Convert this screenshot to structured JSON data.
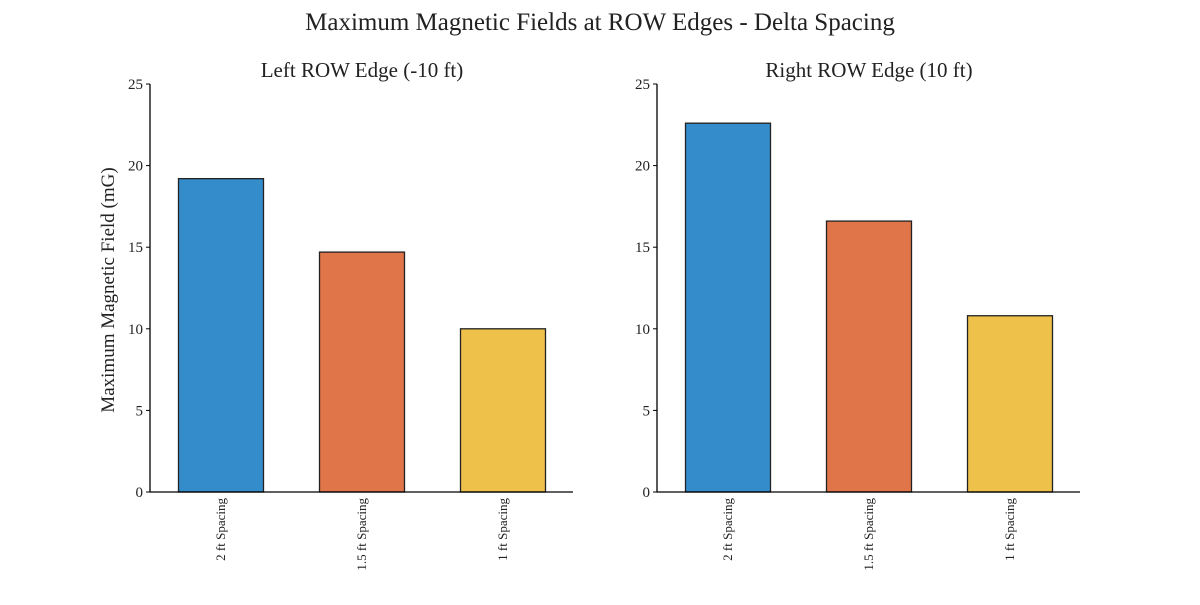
{
  "figure": {
    "title": "Maximum Magnetic Fields at ROW Edges - Delta Spacing"
  },
  "colors": {
    "bar_1": "#348ccb",
    "bar_2": "#e07549",
    "bar_3": "#eec14b"
  },
  "chart_data": [
    {
      "type": "bar",
      "title": "Left ROW Edge (-10 ft)",
      "ylabel": "Maximum Magnetic Field (mG)",
      "xlabel": "",
      "categories": [
        "2 ft Spacing",
        "1.5 ft Spacing",
        "1 ft Spacing"
      ],
      "values": [
        19.2,
        14.7,
        10.0
      ],
      "ylim": [
        0,
        25
      ],
      "yticks": [
        0,
        5,
        10,
        15,
        20,
        25
      ],
      "grid": false
    },
    {
      "type": "bar",
      "title": "Right ROW Edge (10 ft)",
      "ylabel": "",
      "xlabel": "",
      "categories": [
        "2 ft Spacing",
        "1.5 ft Spacing",
        "1 ft Spacing"
      ],
      "values": [
        22.6,
        16.6,
        10.8
      ],
      "ylim": [
        0,
        25
      ],
      "yticks": [
        0,
        5,
        10,
        15,
        20,
        25
      ],
      "grid": false
    }
  ]
}
